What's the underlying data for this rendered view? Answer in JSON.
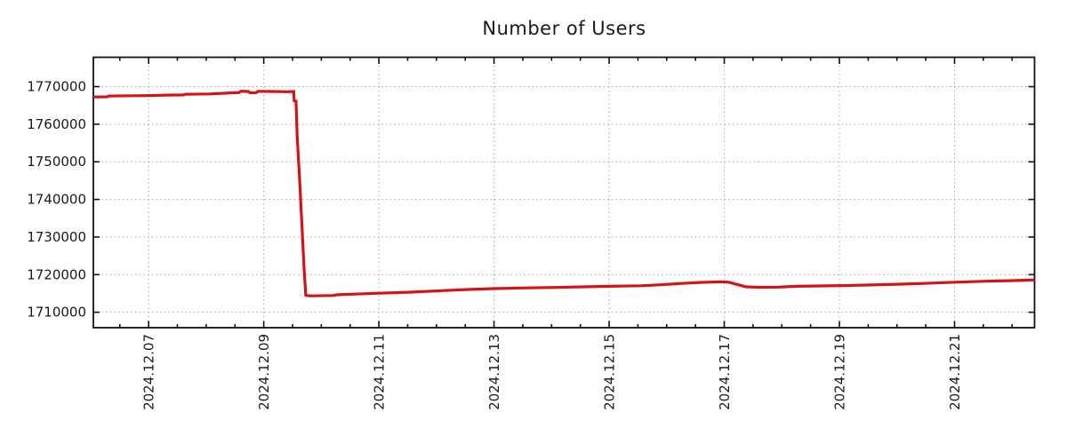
{
  "title": "Number of Users",
  "colors": {
    "line": "#d41414",
    "grid": "#a6a6a6",
    "axis": "#111111",
    "text": "#1a1a1a",
    "background": "#ffffff"
  },
  "chart_data": {
    "type": "line",
    "title": "Number of Users",
    "xlabel": "",
    "ylabel": "",
    "legend": false,
    "grid": true,
    "x_unit": "days since 2024-12-06 00:00",
    "xlim": [
      0.04,
      16.39
    ],
    "ylim": [
      1705900,
      1777800
    ],
    "y_ticks": [
      1710000,
      1720000,
      1730000,
      1740000,
      1750000,
      1760000,
      1770000
    ],
    "x_major_ticks": [
      {
        "t": 1,
        "label": "2024.12.07"
      },
      {
        "t": 3,
        "label": "2024.12.09"
      },
      {
        "t": 5,
        "label": "2024.12.11"
      },
      {
        "t": 7,
        "label": "2024.12.13"
      },
      {
        "t": 9,
        "label": "2024.12.15"
      },
      {
        "t": 11,
        "label": "2024.12.17"
      },
      {
        "t": 13,
        "label": "2024.12.19"
      },
      {
        "t": 15,
        "label": "2024.12.21"
      }
    ],
    "x_minor_tick_step": 0.5,
    "series": [
      {
        "name": "number-of-users",
        "color": "#d41414",
        "points": [
          [
            0.04,
            1767250
          ],
          [
            0.28,
            1767300
          ],
          [
            0.31,
            1767500
          ],
          [
            0.95,
            1767600
          ],
          [
            1.3,
            1767750
          ],
          [
            1.6,
            1767800
          ],
          [
            1.63,
            1767950
          ],
          [
            2.05,
            1768050
          ],
          [
            2.4,
            1768300
          ],
          [
            2.57,
            1768400
          ],
          [
            2.6,
            1768750
          ],
          [
            2.73,
            1768700
          ],
          [
            2.76,
            1768350
          ],
          [
            2.87,
            1768400
          ],
          [
            2.9,
            1768750
          ],
          [
            3.15,
            1768700
          ],
          [
            3.4,
            1768650
          ],
          [
            3.52,
            1768700
          ],
          [
            3.53,
            1766200
          ],
          [
            3.56,
            1766150
          ],
          [
            3.58,
            1757000
          ],
          [
            3.62,
            1746000
          ],
          [
            3.66,
            1734000
          ],
          [
            3.7,
            1722000
          ],
          [
            3.73,
            1714500
          ],
          [
            3.8,
            1714350
          ],
          [
            4.2,
            1714450
          ],
          [
            4.28,
            1714650
          ],
          [
            5.0,
            1715050
          ],
          [
            5.55,
            1715350
          ],
          [
            6.1,
            1715750
          ],
          [
            6.55,
            1716050
          ],
          [
            7.0,
            1716300
          ],
          [
            7.5,
            1716450
          ],
          [
            8.05,
            1716600
          ],
          [
            8.55,
            1716750
          ],
          [
            9.0,
            1716900
          ],
          [
            9.55,
            1717050
          ],
          [
            9.9,
            1717300
          ],
          [
            10.25,
            1717650
          ],
          [
            10.6,
            1717950
          ],
          [
            10.95,
            1718100
          ],
          [
            11.08,
            1718000
          ],
          [
            11.2,
            1717500
          ],
          [
            11.38,
            1716750
          ],
          [
            11.6,
            1716650
          ],
          [
            11.95,
            1716700
          ],
          [
            12.25,
            1716900
          ],
          [
            12.65,
            1717000
          ],
          [
            13.05,
            1717100
          ],
          [
            13.55,
            1717250
          ],
          [
            14.0,
            1717450
          ],
          [
            14.45,
            1717650
          ],
          [
            15.0,
            1718000
          ],
          [
            15.55,
            1718250
          ],
          [
            15.95,
            1718400
          ],
          [
            16.39,
            1718600
          ]
        ]
      }
    ]
  }
}
